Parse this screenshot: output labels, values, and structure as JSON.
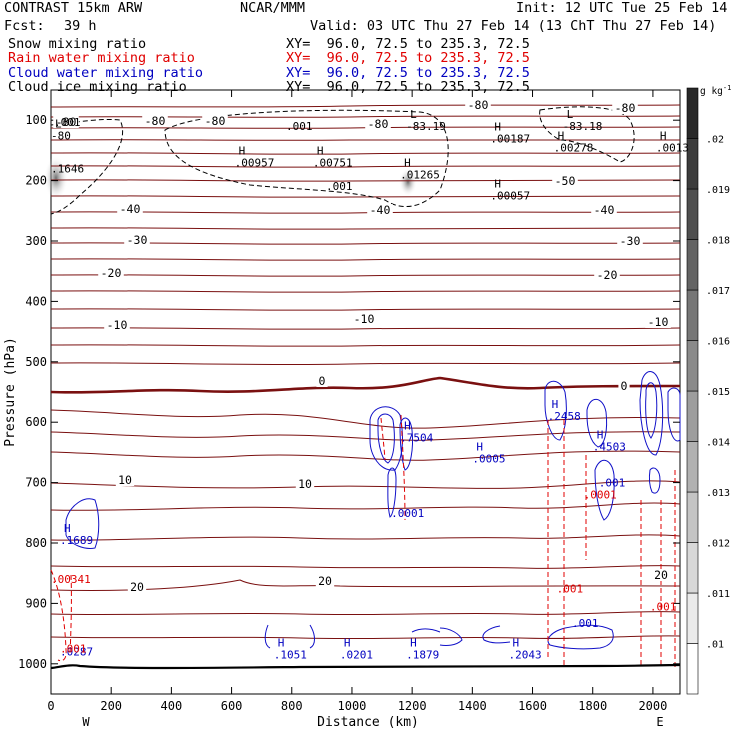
{
  "header": {
    "model": "CONTRAST 15km ARW",
    "center": "NCAR/MMM",
    "init": "Init: 12 UTC Tue 25 Feb 14",
    "fcst_label": "Fcst:",
    "fcst_value": "39 h",
    "valid": "Valid: 03 UTC Thu 27 Feb 14 (13 ChT Thu 27 Feb 14)"
  },
  "fields": [
    {
      "name": "Snow mixing ratio",
      "xy": "XY=  96.0, 72.5 to 235.3, 72.5",
      "color": "#000000"
    },
    {
      "name": "Rain water mixing ratio",
      "xy": "XY=  96.0, 72.5 to 235.3, 72.5",
      "color": "#e00000"
    },
    {
      "name": "Cloud water mixing ratio",
      "xy": "XY=  96.0, 72.5 to 235.3, 72.5",
      "color": "#0000c0"
    },
    {
      "name": "Cloud ice mixing ratio",
      "xy": "XY=  96.0, 72.5 to 235.3, 72.5",
      "color": "#000000"
    }
  ],
  "chart_data": {
    "type": "line",
    "xlabel": "Distance (km)",
    "ylabel": "Pressure (hPa)",
    "xlim": [
      0,
      2090
    ],
    "ylim": [
      1050,
      50
    ],
    "x_ticks": [
      "0",
      "200",
      "400",
      "600",
      "800",
      "1000",
      "1200",
      "1400",
      "1600",
      "1800",
      "2000"
    ],
    "y_ticks": [
      "100",
      "200",
      "300",
      "400",
      "500",
      "600",
      "700",
      "800",
      "900",
      "1000"
    ],
    "x_end_labels": {
      "left": "W",
      "right": "E"
    },
    "colorbar": {
      "unit_label": "g kg",
      "unit_exp": "-1",
      "tick_labels": [
        ".01",
        ".011",
        ".012",
        ".013",
        ".014",
        ".015",
        ".016",
        ".017",
        ".018",
        ".019",
        ".02"
      ],
      "ticks": [
        0.01,
        0.011,
        0.012,
        0.013,
        0.014,
        0.015,
        0.016,
        0.017,
        0.018,
        0.019,
        0.02
      ]
    },
    "temperature_labels": [
      "-80",
      "-80",
      "-80",
      "-80",
      "-80",
      "-80",
      "-50",
      "-40",
      "-40",
      "-40",
      "-30",
      "-30",
      "-20",
      "-20",
      "-10",
      "-10",
      "-10",
      "0",
      "0",
      "10",
      "10",
      "20",
      "20",
      "20"
    ],
    "extrema_labels": [
      {
        "x": 0,
        "p": 125,
        "letter": "L",
        "value": "-80",
        "color": "#000000"
      },
      {
        "x": 1180,
        "p": 110,
        "letter": "L",
        "value": "-83.19",
        "color": "#000000"
      },
      {
        "x": 1700,
        "p": 110,
        "letter": "L",
        "value": "-83.18",
        "color": "#000000"
      },
      {
        "x": 0,
        "p": 180,
        "letter": "",
        "value": ".1646",
        "color": "#000000"
      },
      {
        "x": 610,
        "p": 170,
        "letter": "H",
        "value": ".00957",
        "color": "#000000"
      },
      {
        "x": 870,
        "p": 170,
        "letter": "H",
        "value": ".00751",
        "color": "#000000"
      },
      {
        "x": 1160,
        "p": 190,
        "letter": "H",
        "value": ".01265",
        "color": "#000000"
      },
      {
        "x": 1460,
        "p": 130,
        "letter": "H",
        "value": ".00187",
        "color": "#000000"
      },
      {
        "x": 1670,
        "p": 145,
        "letter": "H",
        "value": ".00278",
        "color": "#000000"
      },
      {
        "x": 2010,
        "p": 145,
        "letter": "H",
        "value": ".0013",
        "color": "#000000"
      },
      {
        "x": 1460,
        "p": 225,
        "letter": "H",
        "value": ".00057",
        "color": "#000000"
      },
      {
        "x": 30,
        "p": 795,
        "letter": "H",
        "value": ".1689",
        "color": "#0000c0"
      },
      {
        "x": 30,
        "p": 980,
        "letter": "",
        "value": ".0287",
        "color": "#0000c0"
      },
      {
        "x": 740,
        "p": 985,
        "letter": "H",
        "value": ".1051",
        "color": "#0000c0"
      },
      {
        "x": 960,
        "p": 985,
        "letter": "H",
        "value": ".0201",
        "color": "#0000c0"
      },
      {
        "x": 1180,
        "p": 985,
        "letter": "H",
        "value": ".1879",
        "color": "#0000c0"
      },
      {
        "x": 1520,
        "p": 985,
        "letter": "H",
        "value": ".2043",
        "color": "#0000c0"
      },
      {
        "x": 1160,
        "p": 625,
        "letter": "H",
        "value": ".7504",
        "color": "#0000c0"
      },
      {
        "x": 1400,
        "p": 660,
        "letter": "H",
        "value": ".0005",
        "color": "#0000c0"
      },
      {
        "x": 1650,
        "p": 590,
        "letter": "H",
        "value": ".2458",
        "color": "#0000c0"
      },
      {
        "x": 1800,
        "p": 640,
        "letter": "H",
        "value": ".4503",
        "color": "#0000c0"
      },
      {
        "x": 1130,
        "p": 750,
        "letter": "",
        "value": ".0001",
        "color": "#0000c0"
      },
      {
        "x": 1820,
        "p": 700,
        "letter": "",
        "value": ".001",
        "color": "#0000c0"
      },
      {
        "x": 0,
        "p": 860,
        "letter": "",
        "value": ".00341",
        "color": "#e00000"
      },
      {
        "x": 30,
        "p": 975,
        "letter": "",
        "value": ".001",
        "color": "#e00000"
      },
      {
        "x": 1680,
        "p": 875,
        "letter": "",
        "value": ".001",
        "color": "#e00000"
      },
      {
        "x": 1770,
        "p": 720,
        "letter": "",
        "value": ".0001",
        "color": "#e00000"
      },
      {
        "x": 1990,
        "p": 905,
        "letter": "",
        "value": ".001",
        "color": "#e00000"
      }
    ],
    "contour_values": {
      "dashed_black": [
        ".001",
        ".001",
        ".001"
      ],
      "blue_low": [
        ".001"
      ]
    }
  }
}
